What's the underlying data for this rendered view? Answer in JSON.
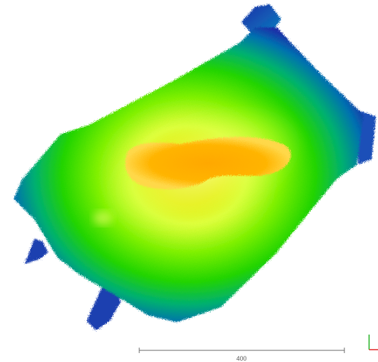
{
  "scale_bar": {
    "label": "400"
  },
  "colors": {
    "background": "#ffffff",
    "ramp_low": "#1c2fa8",
    "ramp_mid_low": "#00a7a0",
    "ramp_mid": "#44e000",
    "ramp_mid_high": "#ffff33",
    "ramp_high": "#ffaa00",
    "axis_x": "#e02020",
    "axis_y": "#20b020",
    "scale_bar": "#666666"
  },
  "axis_indicator": {
    "x_icon": "axis-x-icon",
    "y_icon": "axis-y-icon"
  }
}
